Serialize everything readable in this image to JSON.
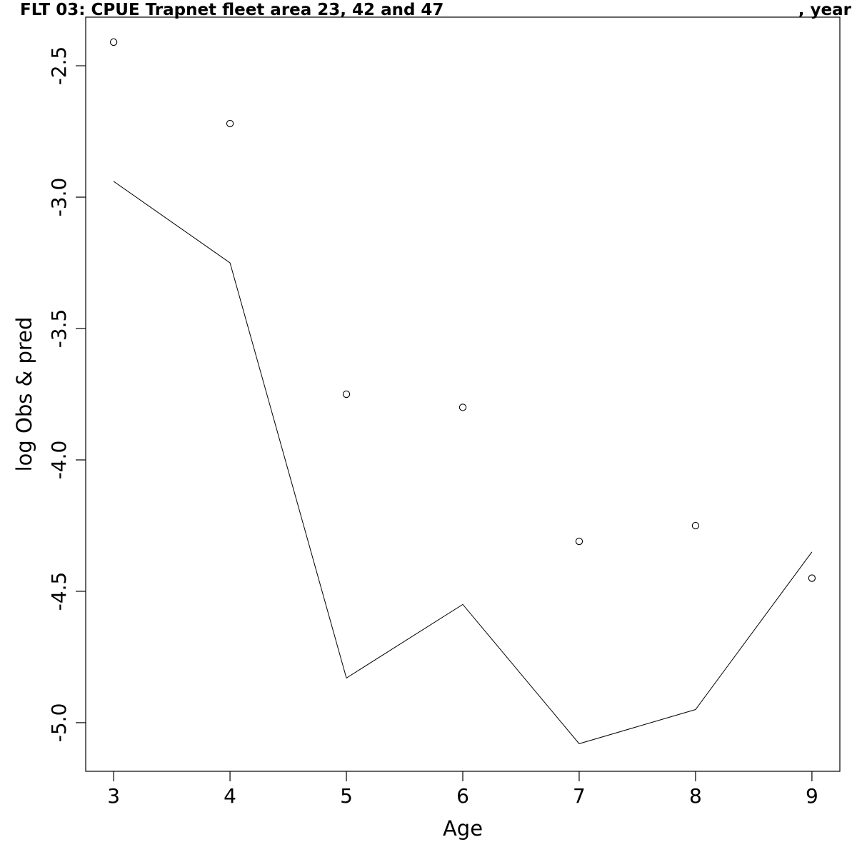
{
  "chart_data": {
    "type": "line",
    "title": "FLT 03: CPUE Trapnet fleet area 23, 42 and 47",
    "title_suffix": ", year",
    "xlabel": "Age",
    "ylabel": "log Obs & pred",
    "xlim": [
      2.76,
      9.24
    ],
    "ylim": [
      -5.185,
      -2.315
    ],
    "x_ticks": [
      3,
      4,
      5,
      6,
      7,
      8,
      9
    ],
    "y_ticks": [
      -2.5,
      -3.0,
      -3.5,
      -4.0,
      -4.5,
      -5.0
    ],
    "x_tick_labels": [
      "3",
      "4",
      "5",
      "6",
      "7",
      "8",
      "9"
    ],
    "y_tick_labels": [
      "-2.5",
      "-3.0",
      "-3.5",
      "-4.0",
      "-4.5",
      "-5.0"
    ],
    "grid": false,
    "series": [
      {
        "kind": "points",
        "marker": "open-circle",
        "x": [
          3,
          4,
          5,
          6,
          7,
          8,
          9
        ],
        "values": [
          -2.41,
          -2.72,
          -3.75,
          -3.8,
          -4.31,
          -4.25,
          -4.45
        ]
      },
      {
        "kind": "line",
        "x": [
          3,
          4,
          5,
          6,
          7,
          8,
          9
        ],
        "values": [
          -2.94,
          -3.25,
          -4.83,
          -4.55,
          -5.08,
          -4.95,
          -4.35
        ]
      }
    ]
  }
}
